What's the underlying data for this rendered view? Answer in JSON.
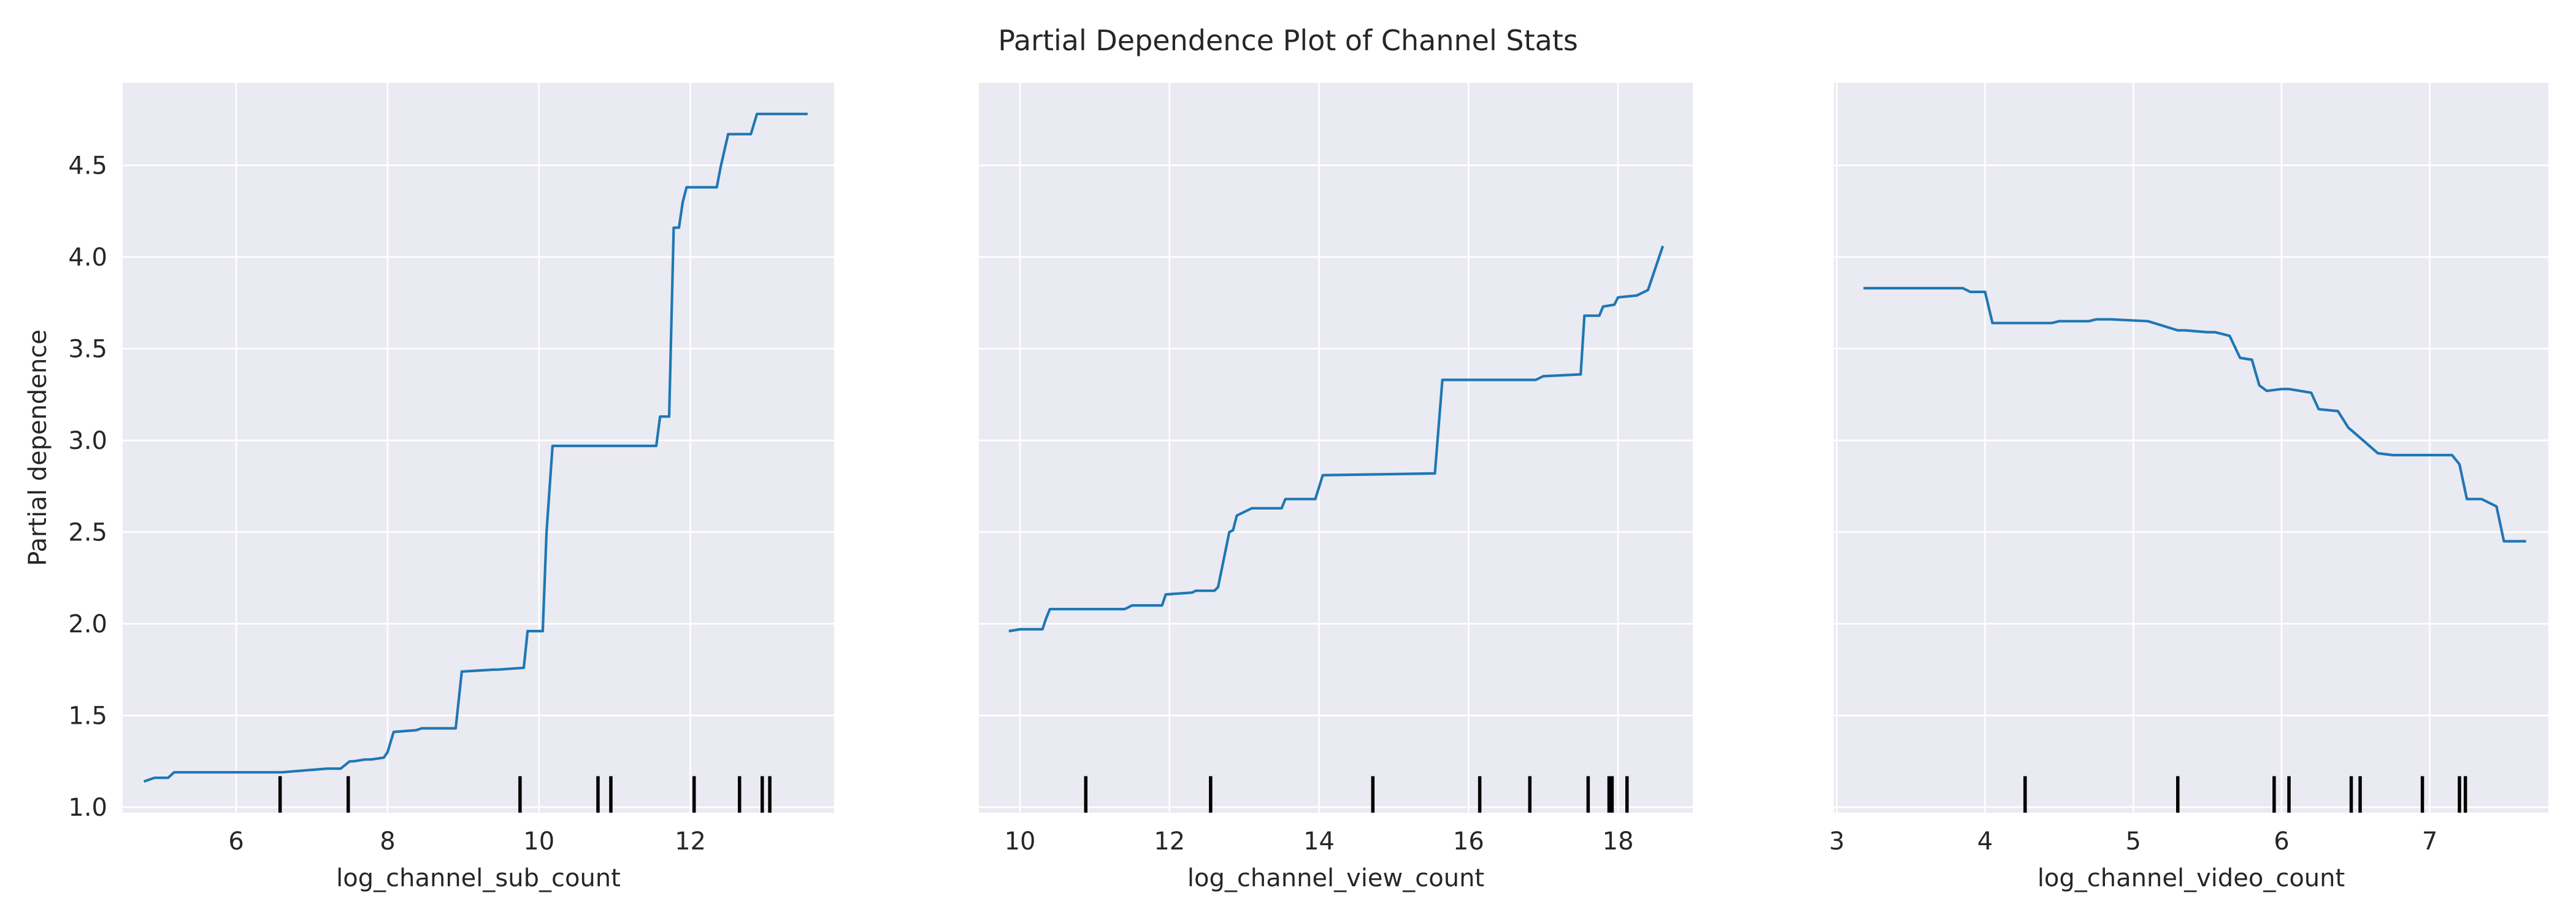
{
  "title": "Partial Dependence Plot of Channel Stats",
  "chart_data": [
    {
      "type": "line",
      "title": "",
      "xlabel": "log_channel_sub_count",
      "ylabel": "Partial dependence",
      "xlim": [
        4.5,
        13.9
      ],
      "ylim": [
        0.97,
        4.95
      ],
      "xticks": [
        6,
        8,
        10,
        12
      ],
      "yticks": [
        1.0,
        1.5,
        2.0,
        2.5,
        3.0,
        3.5,
        4.0,
        4.5
      ],
      "grid": true,
      "x": [
        4.78,
        4.92,
        5.0,
        5.1,
        5.18,
        5.3,
        6.6,
        6.9,
        7.2,
        7.38,
        7.5,
        7.55,
        7.7,
        7.78,
        7.95,
        8.0,
        8.08,
        8.38,
        8.45,
        8.9,
        8.98,
        9.0,
        9.4,
        9.45,
        9.8,
        9.85,
        10.05,
        10.1,
        10.18,
        10.28,
        11.55,
        11.6,
        11.72,
        11.78,
        11.85,
        11.9,
        11.95,
        12.35,
        12.4,
        12.5,
        12.8,
        12.88,
        13.55
      ],
      "y": [
        1.14,
        1.16,
        1.16,
        1.16,
        1.19,
        1.19,
        1.19,
        1.2,
        1.21,
        1.21,
        1.25,
        1.25,
        1.26,
        1.26,
        1.27,
        1.3,
        1.41,
        1.42,
        1.43,
        1.43,
        1.74,
        1.74,
        1.75,
        1.75,
        1.76,
        1.96,
        1.96,
        2.5,
        2.97,
        2.97,
        2.97,
        3.13,
        3.13,
        4.16,
        4.16,
        4.3,
        4.38,
        4.38,
        4.49,
        4.67,
        4.67,
        4.78,
        4.78
      ],
      "rug": [
        6.58,
        7.48,
        9.75,
        10.78,
        10.95,
        12.05,
        12.65,
        12.95,
        13.05
      ]
    },
    {
      "type": "line",
      "title": "",
      "xlabel": "log_channel_view_count",
      "ylabel": "",
      "xlim": [
        9.45,
        19.0
      ],
      "ylim": [
        0.97,
        4.95
      ],
      "xticks": [
        10,
        12,
        14,
        16,
        18
      ],
      "yticks": [
        1.0,
        1.5,
        2.0,
        2.5,
        3.0,
        3.5,
        4.0,
        4.5
      ],
      "grid": true,
      "x": [
        9.85,
        10.0,
        10.3,
        10.35,
        10.4,
        11.4,
        11.5,
        11.9,
        11.95,
        12.3,
        12.35,
        12.6,
        12.65,
        12.8,
        12.85,
        12.9,
        13.1,
        13.5,
        13.55,
        13.95,
        14.05,
        15.55,
        15.65,
        16.9,
        17.0,
        17.5,
        17.55,
        17.75,
        17.8,
        17.95,
        18.0,
        18.25,
        18.4,
        18.6
      ],
      "y": [
        1.96,
        1.97,
        1.97,
        2.03,
        2.08,
        2.08,
        2.1,
        2.1,
        2.16,
        2.17,
        2.18,
        2.18,
        2.2,
        2.5,
        2.51,
        2.59,
        2.63,
        2.63,
        2.68,
        2.68,
        2.81,
        2.82,
        3.33,
        3.33,
        3.35,
        3.36,
        3.68,
        3.68,
        3.73,
        3.74,
        3.78,
        3.79,
        3.82,
        4.06
      ],
      "rug": [
        10.88,
        12.55,
        14.72,
        16.15,
        16.82,
        17.6,
        17.88,
        17.92,
        18.12
      ]
    },
    {
      "type": "line",
      "title": "",
      "xlabel": "log_channel_video_count",
      "ylabel": "",
      "xlim": [
        2.98,
        7.8
      ],
      "ylim": [
        0.97,
        4.95
      ],
      "xticks": [
        3,
        4,
        5,
        6,
        7
      ],
      "yticks": [
        1.0,
        1.5,
        2.0,
        2.5,
        3.0,
        3.5,
        4.0,
        4.5
      ],
      "grid": true,
      "x": [
        3.18,
        3.85,
        3.9,
        4.0,
        4.05,
        4.45,
        4.5,
        4.7,
        4.75,
        4.85,
        5.1,
        5.3,
        5.35,
        5.5,
        5.55,
        5.65,
        5.72,
        5.8,
        5.85,
        5.9,
        6.0,
        6.05,
        6.2,
        6.25,
        6.38,
        6.45,
        6.55,
        6.65,
        6.75,
        7.15,
        7.2,
        7.25,
        7.35,
        7.4,
        7.45,
        7.5,
        7.65
      ],
      "y": [
        3.83,
        3.83,
        3.81,
        3.81,
        3.64,
        3.64,
        3.65,
        3.65,
        3.66,
        3.66,
        3.65,
        3.6,
        3.6,
        3.59,
        3.59,
        3.57,
        3.45,
        3.44,
        3.3,
        3.27,
        3.28,
        3.28,
        3.26,
        3.17,
        3.16,
        3.07,
        3.0,
        2.93,
        2.92,
        2.92,
        2.87,
        2.68,
        2.68,
        2.66,
        2.64,
        2.45,
        2.45
      ],
      "rug": [
        4.27,
        5.3,
        5.95,
        6.05,
        6.47,
        6.53,
        6.95,
        7.2,
        7.24
      ]
    }
  ]
}
